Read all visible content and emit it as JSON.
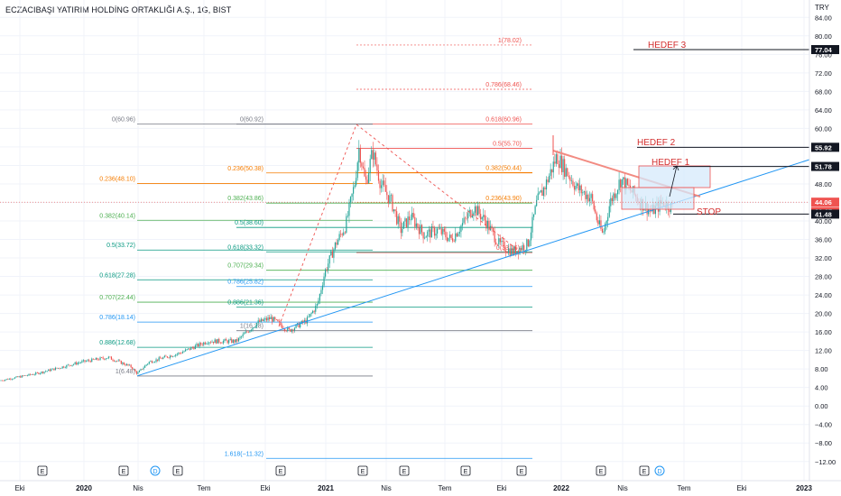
{
  "header": {
    "title": "ECZACIBAŞI YATIRIM HOLDİNG ORTAKLIĞI A.Ş., 1G, BIST",
    "currency": "TRY"
  },
  "chart_data": {
    "type": "candlestick",
    "y_ticks": [
      84,
      80,
      76,
      72,
      68,
      64,
      60,
      56,
      52,
      48,
      44,
      40,
      36,
      32,
      28,
      24,
      20,
      16,
      12,
      8,
      4,
      0,
      -4,
      -8,
      -12
    ],
    "y_tick_labels": [
      "84.00",
      "80.00",
      "76.00",
      "72.00",
      "68.00",
      "64.00",
      "60.00",
      "56.00",
      "52.00",
      "48.00",
      "44.00",
      "40.00",
      "36.00",
      "32.00",
      "28.00",
      "24.00",
      "20.00",
      "16.00",
      "12.00",
      "8.00",
      "4.00",
      "0.00",
      "−4.00",
      "−8.00",
      "−12.00"
    ],
    "ylim": [
      -14,
      86
    ],
    "x_labels": [
      {
        "label": "Eki",
        "x_index": 0
      },
      {
        "label": "2020",
        "x_index": 1
      },
      {
        "label": "Nis",
        "x_index": 2
      },
      {
        "label": "Tem",
        "x_index": 3
      },
      {
        "label": "Eki",
        "x_index": 4
      },
      {
        "label": "2021",
        "x_index": 5
      },
      {
        "label": "Nis",
        "x_index": 6
      },
      {
        "label": "Tem",
        "x_index": 7
      },
      {
        "label": "Eki",
        "x_index": 8
      },
      {
        "label": "2022",
        "x_index": 9
      },
      {
        "label": "Nis",
        "x_index": 10
      },
      {
        "label": "Tem",
        "x_index": 11
      },
      {
        "label": "Eki",
        "x_index": 12
      },
      {
        "label": "2023",
        "x_index": 13
      }
    ],
    "price_markers": [
      {
        "label": "77.04",
        "value": 77.04,
        "style": "dark"
      },
      {
        "label": "55.92",
        "value": 55.92,
        "style": "dark"
      },
      {
        "label": "51.78",
        "value": 51.78,
        "style": "dark"
      },
      {
        "label": "44.06",
        "value": 44.06,
        "style": "red"
      },
      {
        "label": "20:27",
        "value": 42.9,
        "style": "red-sub"
      },
      {
        "label": "41.48",
        "value": 41.48,
        "style": "dark"
      }
    ],
    "fib_levels": [
      {
        "label": "1(78.02)",
        "value": 78.02,
        "color": "#ef5350"
      },
      {
        "label": "0.786(68.46)",
        "value": 68.46,
        "color": "#ef5350"
      },
      {
        "label": "0.618(60.96)",
        "value": 60.96,
        "color": "#ef5350"
      },
      {
        "label": "0.5(55.70)",
        "value": 55.7,
        "color": "#ef5350"
      },
      {
        "label": "0.382(50.44)",
        "value": 50.44,
        "color": "#f57c00"
      },
      {
        "label": "0.236(43.90)",
        "value": 43.9,
        "color": "#f57c00"
      },
      {
        "label": "0(33.16)",
        "value": 33.16,
        "color": "#ef5350"
      },
      {
        "label": "0(60.96)",
        "value": 60.96,
        "color": "#787b86"
      },
      {
        "label": "0(60.92)",
        "value": 60.92,
        "color": "#787b86"
      },
      {
        "label": "0.236(50.38)",
        "value": 50.38,
        "color": "#f57c00"
      },
      {
        "label": "0.236(48.10)",
        "value": 48.1,
        "color": "#f57c00"
      },
      {
        "label": "0.382(43.86)",
        "value": 43.86,
        "color": "#4caf50"
      },
      {
        "label": "0.382(40.14)",
        "value": 40.14,
        "color": "#4caf50"
      },
      {
        "label": "0.5(38.60)",
        "value": 38.6,
        "color": "#089981"
      },
      {
        "label": "0.5(33.72)",
        "value": 33.72,
        "color": "#089981"
      },
      {
        "label": "0.618(33.32)",
        "value": 33.32,
        "color": "#089981"
      },
      {
        "label": "0.707(29.34)",
        "value": 29.34,
        "color": "#4caf50"
      },
      {
        "label": "0.618(27.28)",
        "value": 27.28,
        "color": "#089981"
      },
      {
        "label": "0.786(25.82)",
        "value": 25.82,
        "color": "#2196f3"
      },
      {
        "label": "0.707(22.44)",
        "value": 22.44,
        "color": "#4caf50"
      },
      {
        "label": "0.886(21.36)",
        "value": 21.36,
        "color": "#089981"
      },
      {
        "label": "0.786(18.14)",
        "value": 18.14,
        "color": "#2196f3"
      },
      {
        "label": "1(16.28)",
        "value": 16.28,
        "color": "#787b86"
      },
      {
        "label": "0.886(12.68)",
        "value": 12.68,
        "color": "#089981"
      },
      {
        "label": "1(6.48)",
        "value": 6.48,
        "color": "#787b86"
      },
      {
        "label": "1.618(−11.32)",
        "value": -11.32,
        "color": "#2196f3"
      }
    ],
    "annotations": [
      {
        "label": "HEDEF 3",
        "value": 77.04
      },
      {
        "label": "HEDEF 2",
        "value": 55.92
      },
      {
        "label": "HEDEF 1",
        "value": 51.78
      },
      {
        "label": "STOP",
        "value": 41.48
      }
    ],
    "event_markers": [
      "E",
      "E",
      "D",
      "E",
      "E",
      "E",
      "E",
      "E",
      "E",
      "E",
      "E",
      "D"
    ],
    "colors": {
      "up": "#26a69a",
      "down": "#ef5350",
      "trendline": "#2196f3",
      "resistance": "#f28b82",
      "box_fill": "#d6e9fb",
      "box_stroke": "#ef5350",
      "grid": "#f0f3fa"
    }
  }
}
